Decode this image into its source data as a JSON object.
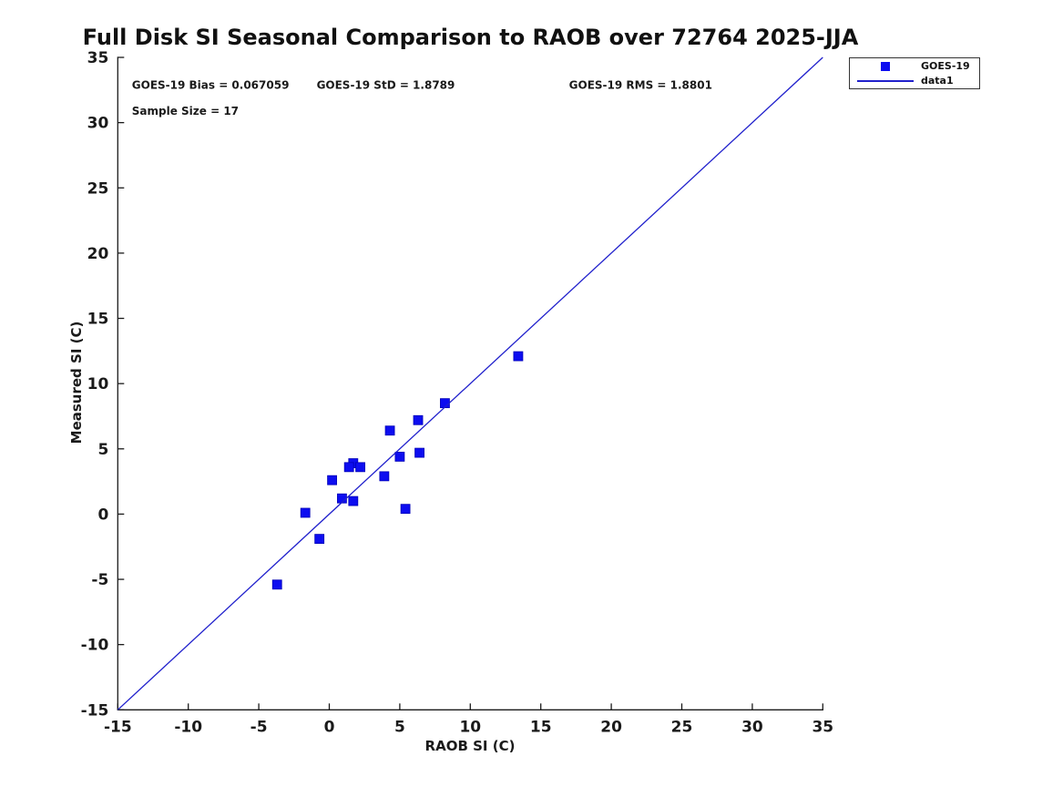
{
  "chart_data": {
    "type": "scatter",
    "title": "Full Disk SI Seasonal Comparison to RAOB over 72764 2025-JJA",
    "xlabel": "RAOB SI (C)",
    "ylabel": "Measured SI (C)",
    "xlim": [
      -15,
      35
    ],
    "ylim": [
      -15,
      35
    ],
    "xticks": [
      -15,
      -10,
      -5,
      0,
      5,
      10,
      15,
      20,
      25,
      30,
      35
    ],
    "yticks": [
      -15,
      -10,
      -5,
      0,
      5,
      10,
      15,
      20,
      25,
      30,
      35
    ],
    "grid": false,
    "axis_color": "#1a1a1a",
    "marker_color": "#0d0df0",
    "line_color": "#2020cc",
    "annotations": [
      {
        "text": "GOES-19 Bias = 0.067059",
        "x": -14.0,
        "y": 32.6
      },
      {
        "text": "GOES-19 StD = 1.8789",
        "x": -0.9,
        "y": 32.6
      },
      {
        "text": "GOES-19 RMS = 1.8801",
        "x": 17.0,
        "y": 32.6
      },
      {
        "text": "Sample Size = 17",
        "x": -14.0,
        "y": 30.6
      }
    ],
    "stats": {
      "bias": 0.067059,
      "std": 1.8789,
      "rms": 1.8801,
      "sample_size": 17
    },
    "legend": {
      "position": "outside-top-right",
      "entries": [
        {
          "label": "GOES-19",
          "type": "marker",
          "marker": "square",
          "color": "#0d0df0"
        },
        {
          "label": "data1",
          "type": "line",
          "color": "#2020cc"
        }
      ]
    },
    "series": [
      {
        "name": "GOES-19",
        "type": "scatter",
        "marker": "square",
        "color": "#0d0df0",
        "points": [
          [
            13.4,
            12.1
          ],
          [
            8.2,
            8.5
          ],
          [
            6.3,
            7.2
          ],
          [
            4.3,
            6.4
          ],
          [
            6.4,
            4.7
          ],
          [
            5.0,
            4.4
          ],
          [
            1.7,
            3.9
          ],
          [
            1.4,
            3.6
          ],
          [
            2.2,
            3.6
          ],
          [
            3.9,
            2.9
          ],
          [
            0.2,
            2.6
          ],
          [
            0.9,
            1.2
          ],
          [
            1.7,
            1.0
          ],
          [
            5.4,
            0.4
          ],
          [
            -1.7,
            0.1
          ],
          [
            -0.7,
            -1.9
          ],
          [
            -3.7,
            -5.4
          ]
        ]
      },
      {
        "name": "data1",
        "type": "line",
        "color": "#2020cc",
        "points": [
          [
            -15,
            -15
          ],
          [
            35,
            35
          ]
        ]
      }
    ]
  }
}
